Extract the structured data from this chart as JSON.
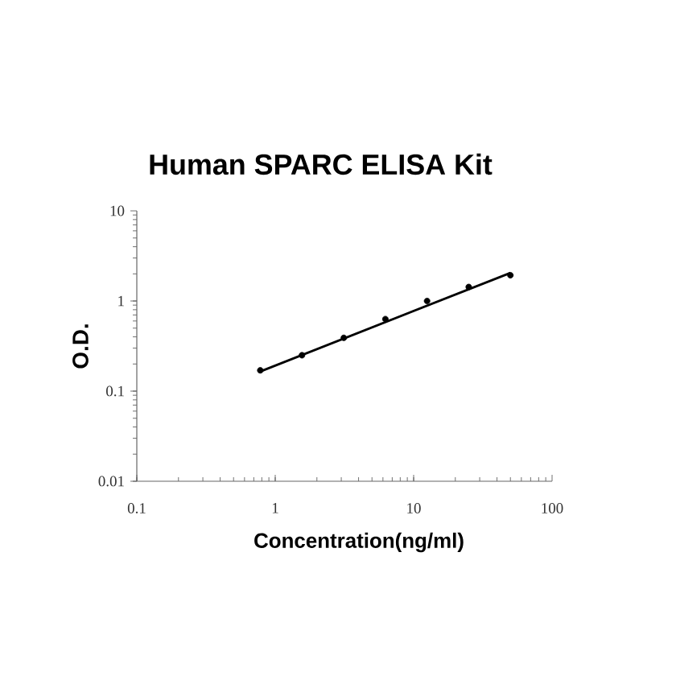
{
  "chart_data": {
    "type": "scatter",
    "title": "Human SPARC ELISA Kit",
    "xlabel": "Concentration(ng/ml)",
    "ylabel": "O.D.",
    "log": "xy",
    "xlim": [
      0.1,
      100
    ],
    "ylim": [
      0.01,
      10
    ],
    "xticks": [
      0.1,
      1,
      10,
      100
    ],
    "yticks": [
      0.01,
      0.1,
      1,
      10
    ],
    "series": [
      {
        "color": "#000000",
        "marker": "circle",
        "x": [
          0.78,
          1.56,
          3.13,
          6.25,
          12.5,
          25,
          50
        ],
        "values": [
          0.17,
          0.25,
          0.39,
          0.63,
          1.0,
          1.43,
          1.93
        ]
      },
      {
        "type": "line",
        "color": "#000000",
        "marker": "none",
        "line_style": "solid",
        "x": [
          0.78,
          50
        ],
        "values": [
          0.165,
          2.05
        ]
      }
    ]
  }
}
